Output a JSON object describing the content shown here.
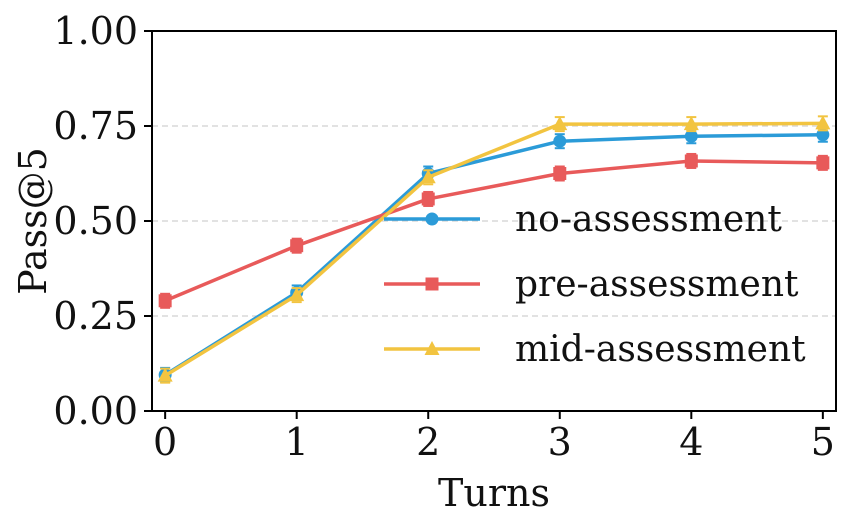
{
  "chart_data": {
    "type": "line",
    "xlabel": "Turns",
    "ylabel": "Pass@5",
    "x": [
      0,
      1,
      2,
      3,
      4,
      5
    ],
    "xlim": [
      -0.1,
      5.1
    ],
    "ylim": [
      0,
      1
    ],
    "xticks": [
      "0",
      "1",
      "2",
      "3",
      "4",
      "5"
    ],
    "yticks": [
      "0.00",
      "0.25",
      "0.50",
      "0.75",
      "1.00"
    ],
    "grid": "horizontal dashed",
    "legend_placement": "center-right",
    "series": [
      {
        "name": "no-assessment",
        "marker": "circle",
        "color": "#2b9bd8",
        "values": [
          0.095,
          0.312,
          0.625,
          0.71,
          0.723,
          0.727
        ]
      },
      {
        "name": "pre-assessment",
        "marker": "square",
        "color": "#e85a5a",
        "values": [
          0.29,
          0.435,
          0.558,
          0.625,
          0.658,
          0.653
        ]
      },
      {
        "name": "mid-assessment",
        "marker": "triangle",
        "color": "#f2c440",
        "values": [
          0.093,
          0.305,
          0.615,
          0.755,
          0.755,
          0.757
        ]
      }
    ]
  }
}
